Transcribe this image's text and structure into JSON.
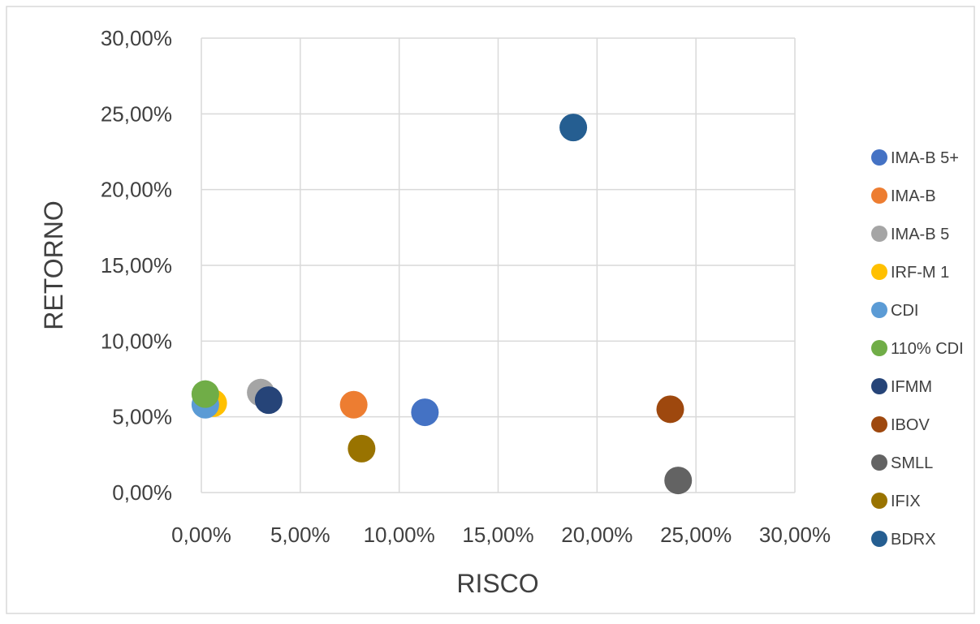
{
  "chart_data": {
    "type": "scatter",
    "xlabel": "RISCO",
    "ylabel": "RETORNO",
    "xlim": [
      0,
      30
    ],
    "ylim": [
      0,
      30
    ],
    "x_ticks": [
      "0,00%",
      "5,00%",
      "10,00%",
      "15,00%",
      "20,00%",
      "25,00%",
      "30,00%"
    ],
    "y_ticks": [
      "0,00%",
      "5,00%",
      "10,00%",
      "15,00%",
      "20,00%",
      "25,00%",
      "30,00%"
    ],
    "grid": true,
    "legend_position": "right",
    "series": [
      {
        "name": "IMA-B 5+",
        "color": "#4472C4",
        "x": 11.3,
        "y": 5.3
      },
      {
        "name": "IMA-B",
        "color": "#ED7D31",
        "x": 7.7,
        "y": 5.8
      },
      {
        "name": "IMA-B 5",
        "color": "#A5A5A5",
        "x": 3.0,
        "y": 6.6
      },
      {
        "name": "IRF-M 1",
        "color": "#FFC000",
        "x": 0.6,
        "y": 5.9
      },
      {
        "name": "CDI",
        "color": "#5B9BD5",
        "x": 0.2,
        "y": 5.8
      },
      {
        "name": "110% CDI",
        "color": "#70AD47",
        "x": 0.2,
        "y": 6.5
      },
      {
        "name": "IFMM",
        "color": "#264478",
        "x": 3.4,
        "y": 6.1
      },
      {
        "name": "IBOV",
        "color": "#9E480E",
        "x": 23.7,
        "y": 5.5
      },
      {
        "name": "SMLL",
        "color": "#636363",
        "x": 24.1,
        "y": 0.8
      },
      {
        "name": "IFIX",
        "color": "#997300",
        "x": 8.1,
        "y": 2.9
      },
      {
        "name": "BDRX",
        "color": "#255E91",
        "x": 18.8,
        "y": 24.1
      }
    ]
  }
}
